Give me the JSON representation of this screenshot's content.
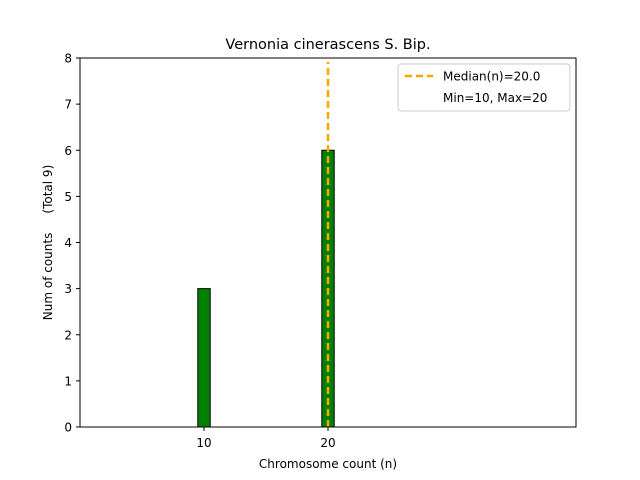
{
  "chart_data": {
    "type": "bar",
    "title": "Vernonia cinerascens S. Bip.",
    "xlabel": "Chromosome count (n)",
    "ylabel": "Num of counts     (Total 9)",
    "xlim": [
      0,
      40
    ],
    "ylim": [
      0,
      8
    ],
    "x_ticks": [
      10,
      20
    ],
    "y_ticks": [
      0,
      1,
      2,
      3,
      4,
      5,
      6,
      7,
      8
    ],
    "grid": false,
    "bar_width": 1,
    "bars": [
      {
        "x": 10,
        "value": 3
      },
      {
        "x": 20,
        "value": 6
      }
    ],
    "median_line": {
      "x": 20.0,
      "label": "Median(n)=20.0"
    },
    "legend": {
      "placement": "top-right",
      "entries": [
        "Median(n)=20.0",
        "Min=10, Max=20"
      ]
    },
    "colors": {
      "bar_fill": "#008000",
      "bar_edge": "#000000",
      "median": "#ffa500"
    }
  }
}
